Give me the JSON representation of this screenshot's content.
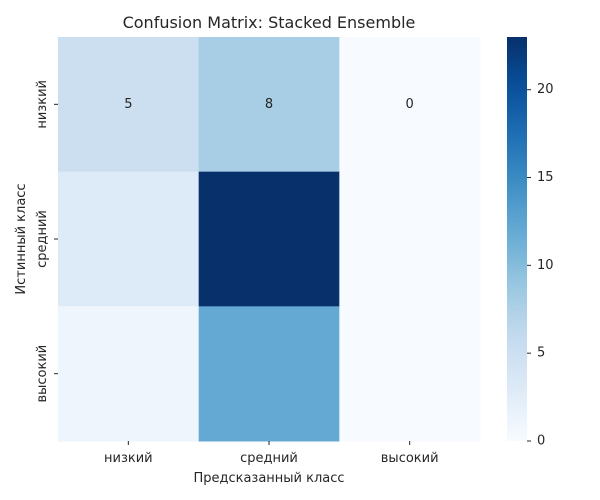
{
  "chart_data": {
    "type": "heatmap",
    "title": "Confusion Matrix: Stacked Ensemble",
    "xlabel": "Предсказанный класс",
    "ylabel": "Истинный класс",
    "x_categories": [
      "низкий",
      "средний",
      "высокий"
    ],
    "y_categories": [
      "низкий",
      "средний",
      "высокий"
    ],
    "values": [
      [
        5,
        8,
        0
      ],
      [
        3,
        23,
        0
      ],
      [
        1,
        12,
        0
      ]
    ],
    "annotations": [
      [
        "5",
        "8",
        "0"
      ],
      [
        "",
        "",
        ""
      ],
      [
        "",
        "",
        ""
      ]
    ],
    "colormap": "Blues",
    "vmin": 0,
    "vmax": 23,
    "colorbar_ticks": [
      0,
      5,
      10,
      15,
      20
    ]
  }
}
